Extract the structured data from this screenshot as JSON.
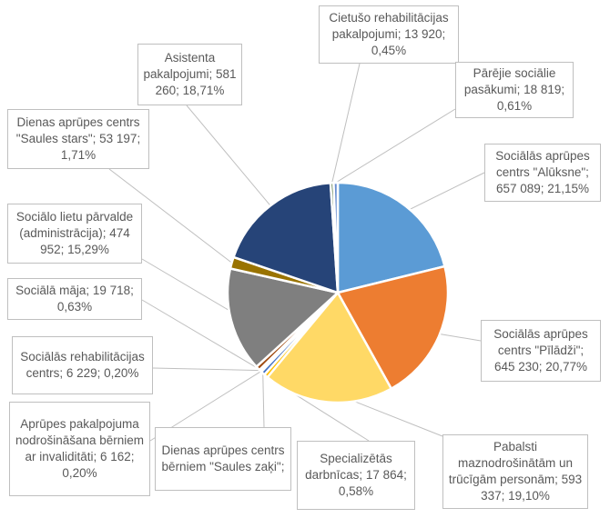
{
  "chart_data": {
    "type": "pie",
    "title": "",
    "legend": "none",
    "slices": [
      {
        "name": "Sociālās aprūpes centrs \"Alūksne\"",
        "value": 657089,
        "percent": 21.15,
        "label": "Sociālās aprūpes centrs \"Alūksne\"; 657 089; 21,15%",
        "color": "#5B9BD5"
      },
      {
        "name": "Sociālās aprūpes centrs \"Pīlādži\"",
        "value": 645230,
        "percent": 20.77,
        "label": "Sociālās aprūpes centrs \"Pīlādži\"; 645 230; 20,77%",
        "color": "#ED7D31"
      },
      {
        "name": "Pabalsti maznodrošinātām un trūcīgām personām",
        "value": 593337,
        "percent": 19.1,
        "label": "Pabalsti maznodrošinātām un trūcīgām personām; 593 337; 19,10%",
        "color": "#FFD966"
      },
      {
        "name": "Specializētās darbnīcas",
        "value": 17864,
        "percent": 0.58,
        "label": "Specializētās darbnīcas; 17 864; 0,58%",
        "color": "#FFC000"
      },
      {
        "name": "Dienas aprūpes centrs bērniem \"Saules zaķi\"",
        "value": 18600,
        "percent": 0.6,
        "label": "Dienas aprūpes centrs bērniem \"Saules zaķi\";",
        "color": "#4472C4"
      },
      {
        "name": "Aprūpes pakalpojuma nodrošināšana bērniem ar invaliditāti",
        "value": 6162,
        "percent": 0.2,
        "label": "Aprūpes pakalpojuma nodrošināšana bērniem ar invaliditāti; 6 162; 0,20%",
        "color": "#70AD47"
      },
      {
        "name": "Sociālās rehabilitācijas centrs",
        "value": 6229,
        "percent": 0.2,
        "label": "Sociālās rehabilitācijas centrs; 6 229; 0,20%",
        "color": "#255E91"
      },
      {
        "name": "Sociālā māja",
        "value": 19718,
        "percent": 0.63,
        "label": "Sociālā māja; 19 718; 0,63%",
        "color": "#9E480E"
      },
      {
        "name": "Sociālo lietu pārvalde (administrācija)",
        "value": 474952,
        "percent": 15.29,
        "label": "Sociālo lietu pārvalde (administrācija); 474 952; 15,29%",
        "color": "#7F7F7F"
      },
      {
        "name": "Dienas aprūpes centrs \"Saules stars\"",
        "value": 53197,
        "percent": 1.71,
        "label": "Dienas aprūpes centrs \"Saules stars\"; 53 197; 1,71%",
        "color": "#997300"
      },
      {
        "name": "Asistenta pakalpojumi",
        "value": 581260,
        "percent": 18.71,
        "label": "Asistenta pakalpojumi; 581 260; 18,71%",
        "color": "#264478"
      },
      {
        "name": "Cietušo rehabilitācijas pakalpojumi",
        "value": 13920,
        "percent": 0.45,
        "label": "Cietušo rehabilitācijas pakalpojumi; 13 920; 0,45%",
        "color": "#43682B"
      },
      {
        "name": "Pārējie sociālie pasākumi",
        "value": 18819,
        "percent": 0.61,
        "label": "Pārējie sociālie pasākumi; 18 819; 0,61%",
        "color": "#698ED0"
      }
    ]
  }
}
